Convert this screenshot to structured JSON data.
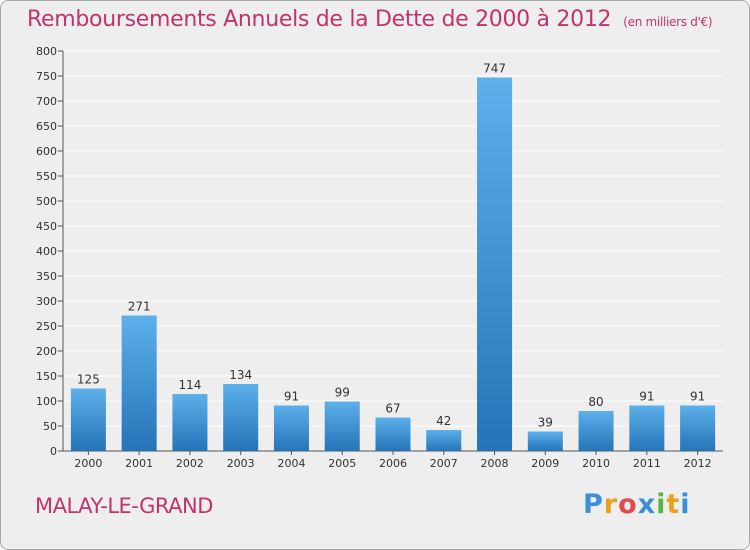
{
  "header": {
    "title": "Remboursements Annuels de la Dette de 2000 à 2012",
    "subtitle": "(en milliers d'€)"
  },
  "footer": {
    "commune": "MALAY-LE-GRAND",
    "logo_letters": [
      "P",
      "r",
      "o",
      "x",
      "i",
      "t",
      "i"
    ],
    "logo_colors": [
      "#3a8fd6",
      "#e8a21c",
      "#e34a4a",
      "#3a8fd6",
      "#5bb442",
      "#e8a21c",
      "#3a8fd6"
    ]
  },
  "colors": {
    "bar_top": "#5db0ea",
    "bar_bottom": "#2474b8",
    "grid": "#ffffff",
    "text": "#333333",
    "brand": "#c2336e"
  },
  "chart_data": {
    "type": "bar",
    "title": "Remboursements Annuels de la Dette de 2000 à 2012",
    "subtitle": "(en milliers d'€)",
    "categories": [
      "2000",
      "2001",
      "2002",
      "2003",
      "2004",
      "2005",
      "2006",
      "2007",
      "2008",
      "2009",
      "2010",
      "2011",
      "2012"
    ],
    "values": [
      125,
      271,
      114,
      134,
      91,
      99,
      67,
      42,
      747,
      39,
      80,
      91,
      91
    ],
    "ylim": [
      0,
      800
    ],
    "yticks": [
      0,
      50,
      100,
      150,
      200,
      250,
      300,
      350,
      400,
      450,
      500,
      550,
      600,
      650,
      700,
      750,
      800
    ],
    "grid": true,
    "data_labels": true
  }
}
